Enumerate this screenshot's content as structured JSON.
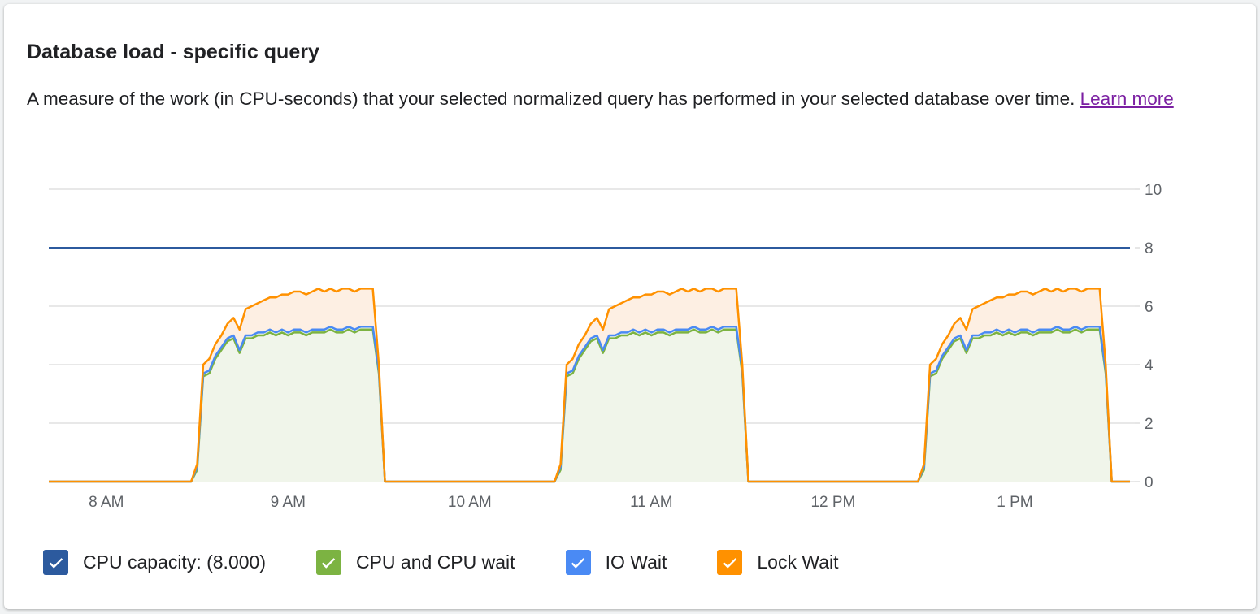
{
  "card": {
    "title": "Database load - specific query",
    "description": "A measure of the work (in CPU-seconds) that your selected normalized query has performed in your selected database over time.",
    "learn_more": "Learn more"
  },
  "chart_data": {
    "type": "area",
    "stacked": true,
    "x_domain": [
      "07:41",
      "13:38"
    ],
    "x_ticks": [
      {
        "t": "08:00",
        "label": "8 AM"
      },
      {
        "t": "09:00",
        "label": "9 AM"
      },
      {
        "t": "10:00",
        "label": "10 AM"
      },
      {
        "t": "11:00",
        "label": "11 AM"
      },
      {
        "t": "12:00",
        "label": "12 PM"
      },
      {
        "t": "13:00",
        "label": "1 PM"
      }
    ],
    "ylim": [
      0,
      10
    ],
    "y_ticks": [
      0,
      2,
      4,
      6,
      8,
      10
    ],
    "y_axis_side": "right",
    "grid": true,
    "legend_position": "bottom",
    "capacity": {
      "name": "CPU capacity: (8.000)",
      "value": 8,
      "color": "#2c5a9e"
    },
    "burst_offsets": [
      "08:28",
      "10:28",
      "12:28"
    ],
    "burst_step_minutes": 2,
    "series": [
      {
        "name": "CPU and CPU wait",
        "color": "#7cb342",
        "fill": "#f0f5ea",
        "values": [
          0,
          0.4,
          3.6,
          3.7,
          4.2,
          4.5,
          4.8,
          4.9,
          4.4,
          4.9,
          4.9,
          5.0,
          5.0,
          5.1,
          5.0,
          5.1,
          5.0,
          5.1,
          5.1,
          5.0,
          5.1,
          5.1,
          5.1,
          5.2,
          5.1,
          5.1,
          5.2,
          5.1,
          5.2,
          5.2,
          5.2,
          3.7,
          0
        ]
      },
      {
        "name": "IO Wait",
        "color": "#4a8af4",
        "fill": "#f0f5ea",
        "values": [
          0,
          0.1,
          0.1,
          0.1,
          0.1,
          0.1,
          0.1,
          0.1,
          0.1,
          0.1,
          0.1,
          0.1,
          0.1,
          0.1,
          0.1,
          0.1,
          0.1,
          0.1,
          0.1,
          0.1,
          0.1,
          0.1,
          0.1,
          0.1,
          0.1,
          0.1,
          0.1,
          0.1,
          0.1,
          0.1,
          0.1,
          0.1,
          0
        ]
      },
      {
        "name": "Lock Wait",
        "color": "#ff9100",
        "fill": "#fdefe3",
        "values": [
          0,
          0.1,
          0.3,
          0.4,
          0.4,
          0.4,
          0.5,
          0.6,
          0.7,
          0.9,
          1.0,
          1.0,
          1.1,
          1.1,
          1.2,
          1.2,
          1.3,
          1.3,
          1.3,
          1.3,
          1.3,
          1.4,
          1.3,
          1.3,
          1.3,
          1.4,
          1.3,
          1.3,
          1.3,
          1.3,
          1.3,
          0.2,
          0
        ]
      }
    ]
  },
  "legend": [
    {
      "label": "CPU capacity: (8.000)",
      "color": "#2c5a9e",
      "checked": true
    },
    {
      "label": "CPU and CPU wait",
      "color": "#7cb342",
      "checked": true
    },
    {
      "label": "IO Wait",
      "color": "#4a8af4",
      "checked": true
    },
    {
      "label": "Lock Wait",
      "color": "#ff9100",
      "checked": true
    }
  ]
}
